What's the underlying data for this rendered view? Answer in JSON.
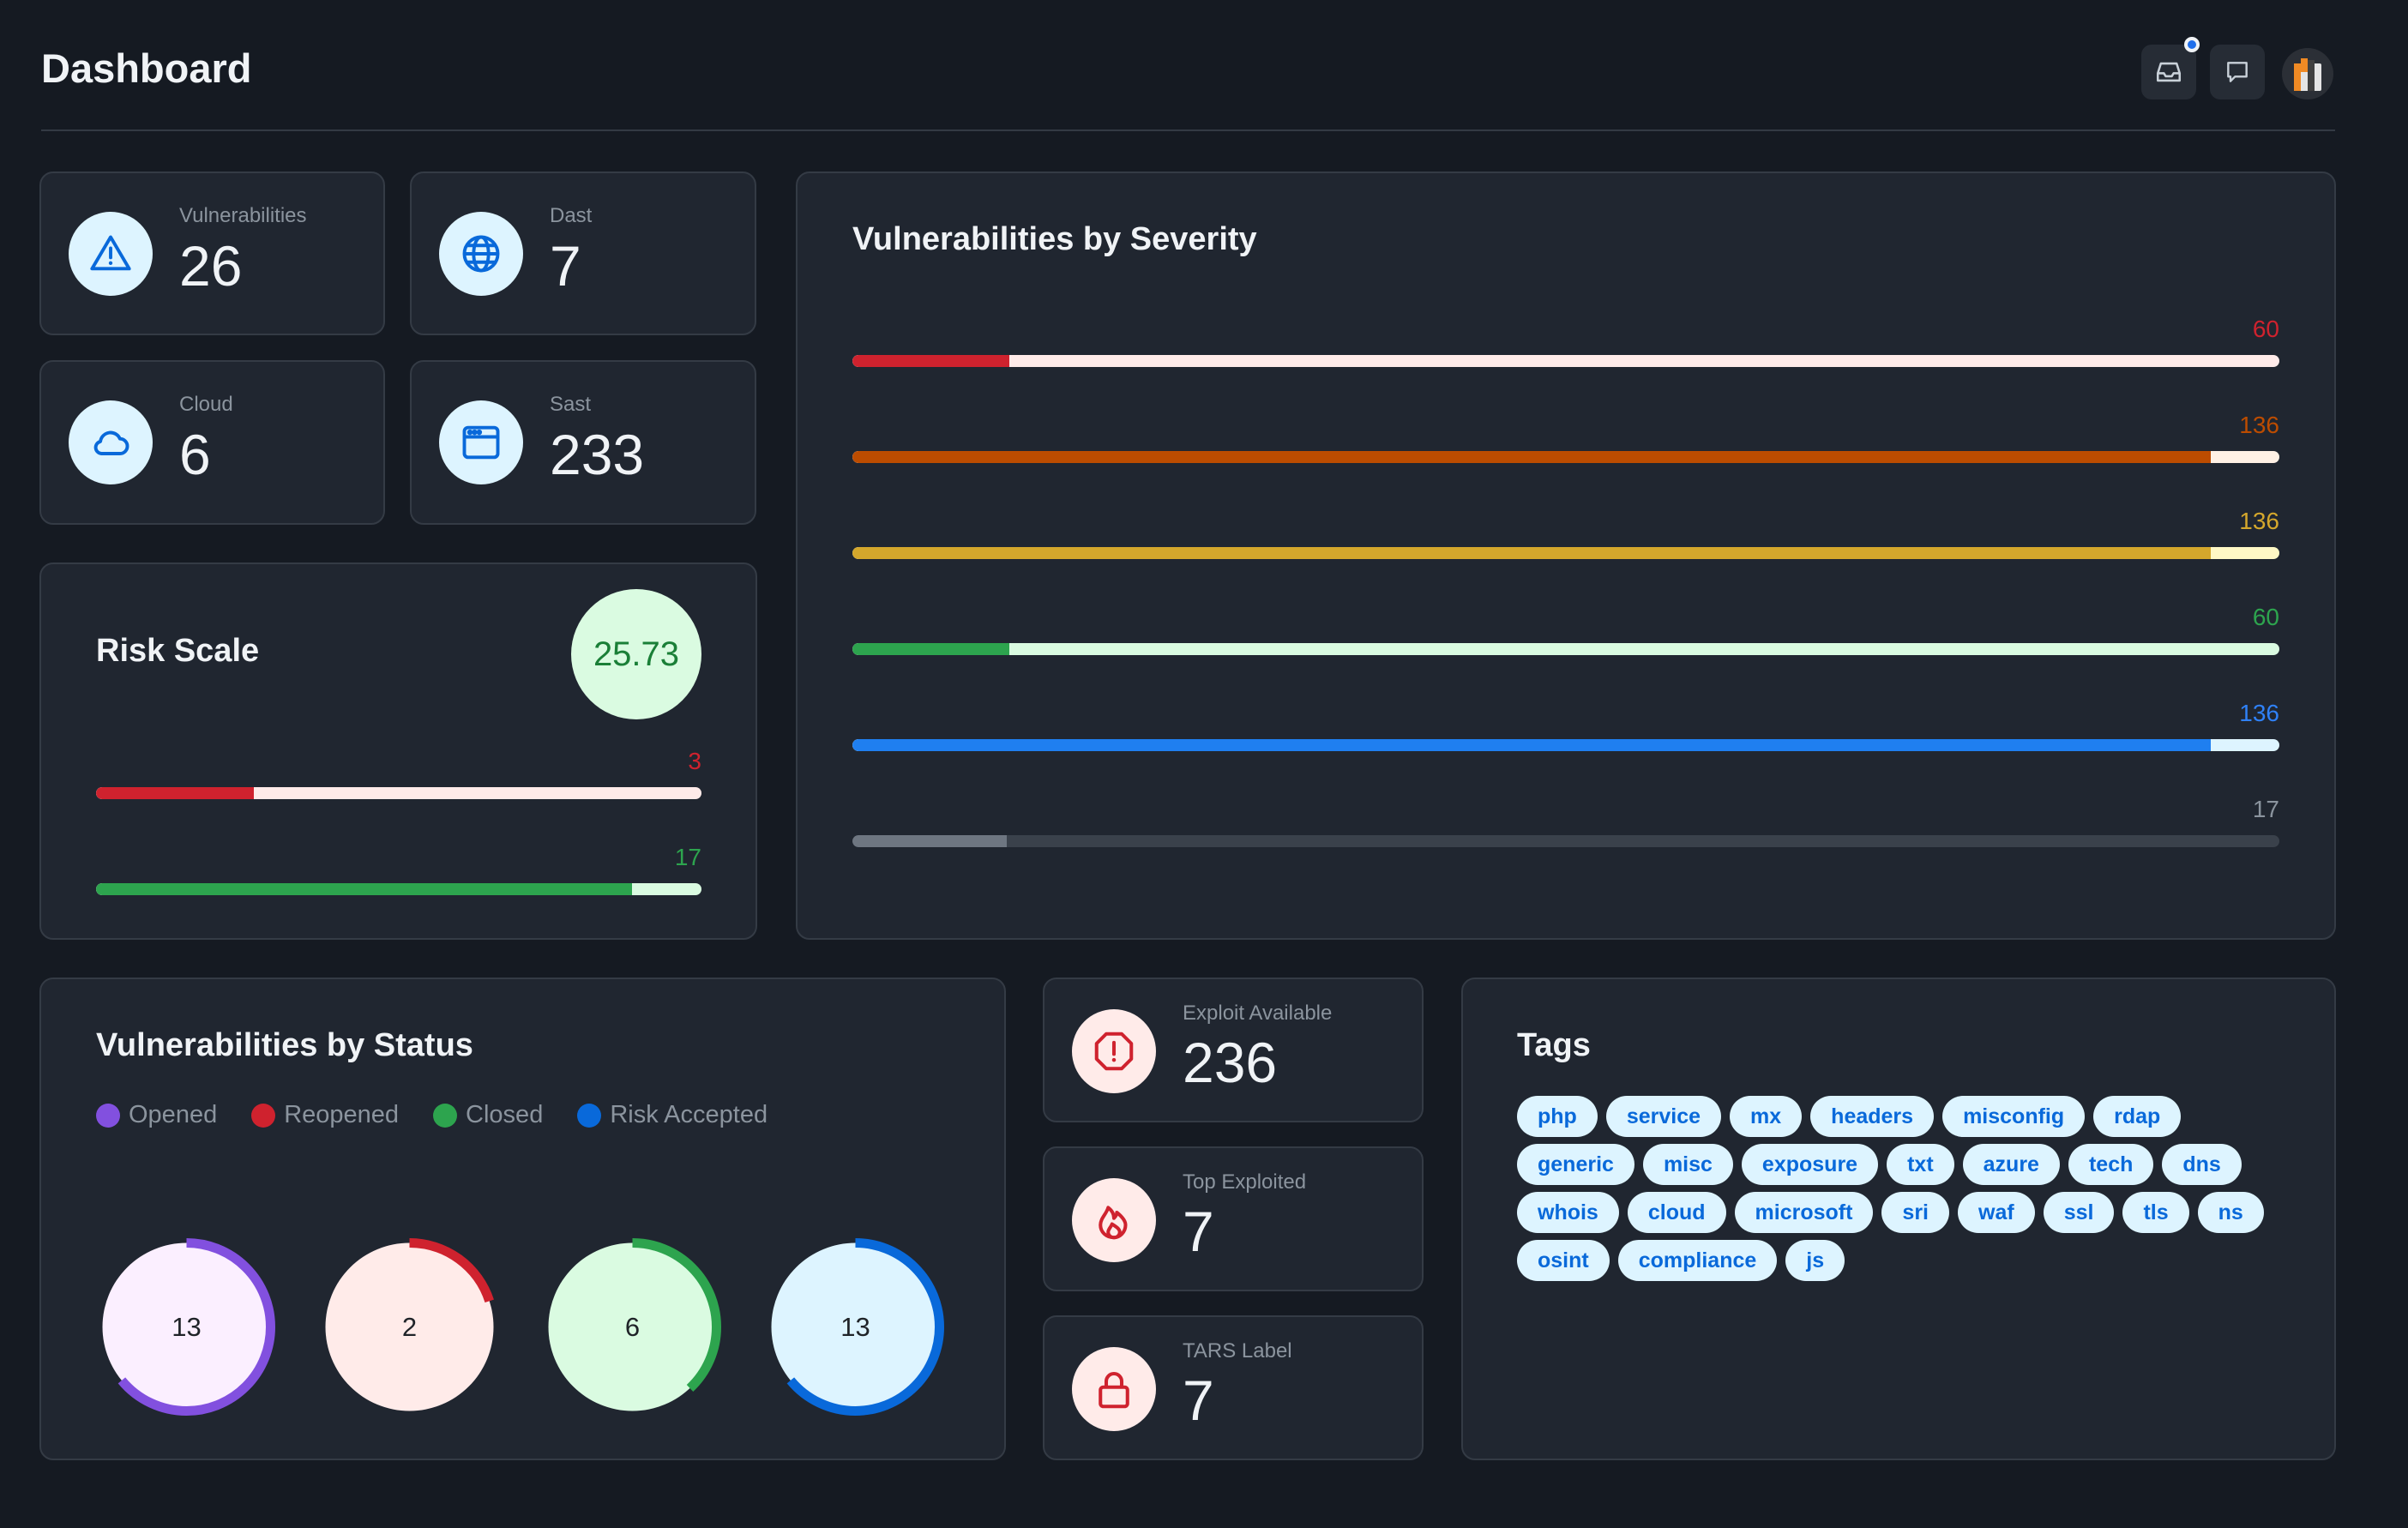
{
  "header": {
    "title": "Dashboard",
    "icons": [
      "inbox-icon",
      "comment-icon",
      "avatar"
    ]
  },
  "stats": {
    "vulnerabilities": {
      "label": "Vulnerabilities",
      "value": "26",
      "icon": "alert-icon"
    },
    "dast": {
      "label": "Dast",
      "value": "7",
      "icon": "globe-icon"
    },
    "cloud": {
      "label": "Cloud",
      "value": "6",
      "icon": "cloud-icon"
    },
    "sast": {
      "label": "Sast",
      "value": "233",
      "icon": "browser-icon"
    }
  },
  "risk_scale": {
    "title": "Risk Scale",
    "score": "25.73",
    "bars": [
      {
        "label": "3",
        "fraction": 0.26,
        "color": "#cf222e",
        "track": "#ffebe9"
      },
      {
        "label": "17",
        "fraction": 0.885,
        "color": "#2da44e",
        "track": "#dafbe1"
      }
    ]
  },
  "severity": {
    "title": "Vulnerabilities by Severity",
    "bars": [
      {
        "label": "60",
        "fraction": 0.11,
        "color": "#cf222e",
        "track": "#ffebe9",
        "text_color": "#cf222e"
      },
      {
        "label": "136",
        "fraction": 0.952,
        "color": "#bc4c00",
        "track": "#fff1e5",
        "text_color": "#bc4c00"
      },
      {
        "label": "136",
        "fraction": 0.952,
        "color": "#d4a72c",
        "track": "#fff8c5",
        "text_color": "#d4a72c"
      },
      {
        "label": "60",
        "fraction": 0.11,
        "color": "#2da44e",
        "track": "#dafbe1",
        "text_color": "#2da44e"
      },
      {
        "label": "136",
        "fraction": 0.952,
        "color": "#1f7ff0",
        "track": "#ddf4ff",
        "text_color": "#2f81f7"
      },
      {
        "label": "17",
        "fraction": 0.108,
        "color": "#6e7681",
        "track": "#3a414b",
        "text_color": "#8b949e"
      }
    ]
  },
  "status": {
    "title": "Vulnerabilities by Status",
    "legend": [
      {
        "label": "Opened",
        "color": "#8250df"
      },
      {
        "label": "Reopened",
        "color": "#cf222e"
      },
      {
        "label": "Closed",
        "color": "#2da44e"
      },
      {
        "label": "Risk Accepted",
        "color": "#0969da"
      }
    ],
    "donuts": [
      {
        "value": "13",
        "fraction": 0.64,
        "color": "#8250df",
        "fill": "#fbefff"
      },
      {
        "value": "2",
        "fraction": 0.2,
        "color": "#cf222e",
        "fill": "#ffebe9"
      },
      {
        "value": "6",
        "fraction": 0.38,
        "color": "#2da44e",
        "fill": "#dafbe1"
      },
      {
        "value": "13",
        "fraction": 0.64,
        "color": "#0969da",
        "fill": "#ddf4ff"
      }
    ]
  },
  "exploit": {
    "available": {
      "label": "Exploit Available",
      "value": "236",
      "icon": "stop-icon"
    },
    "top": {
      "label": "Top Exploited",
      "value": "7",
      "icon": "flame-icon"
    },
    "tars": {
      "label": "TARS Label",
      "value": "7",
      "icon": "lock-icon"
    }
  },
  "tags": {
    "title": "Tags",
    "items": [
      "php",
      "service",
      "mx",
      "headers",
      "misconfig",
      "rdap",
      "generic",
      "misc",
      "exposure",
      "txt",
      "azure",
      "tech",
      "dns",
      "whois",
      "cloud",
      "microsoft",
      "sri",
      "waf",
      "ssl",
      "tls",
      "ns",
      "osint",
      "compliance",
      "js"
    ]
  }
}
